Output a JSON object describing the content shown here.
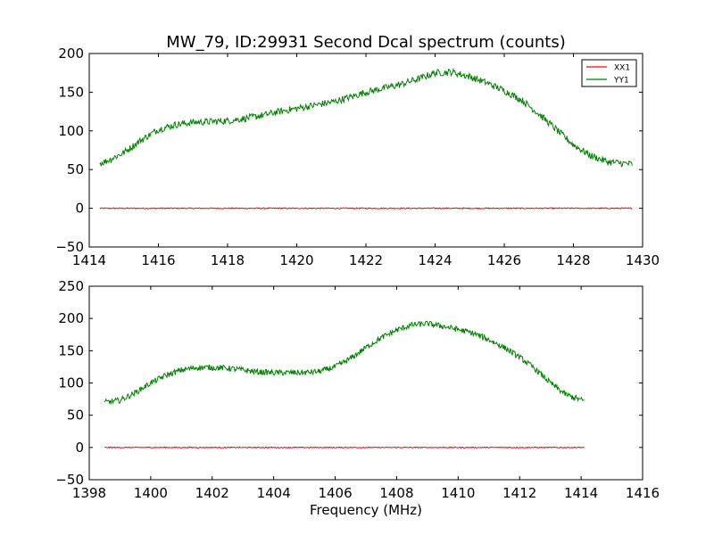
{
  "chart_data": [
    {
      "type": "line",
      "title": "MW_79, ID:29931 Second Dcal spectrum (counts)",
      "xlabel": "",
      "ylabel": "",
      "xlim": [
        1414,
        1430
      ],
      "ylim": [
        -50,
        200
      ],
      "xticks": [
        "1414",
        "1416",
        "1418",
        "1420",
        "1422",
        "1424",
        "1426",
        "1428",
        "1430"
      ],
      "yticks": [
        "−50",
        "0",
        "50",
        "100",
        "150",
        "200"
      ],
      "grid": false,
      "legend": {
        "position": "top-right",
        "entries": [
          "XX1",
          "YY1"
        ]
      },
      "series": [
        {
          "name": "XX1",
          "color": "#ff0000",
          "x": [
            1414.3,
            1429.7
          ],
          "y": [
            0,
            0
          ]
        },
        {
          "name": "YY1",
          "color": "#008000",
          "x": [
            1414.3,
            1414.5,
            1415,
            1415.5,
            1416,
            1416.5,
            1417,
            1417.5,
            1418,
            1418.5,
            1419,
            1419.5,
            1420,
            1420.5,
            1421,
            1421.5,
            1422,
            1422.5,
            1423,
            1423.5,
            1424,
            1424.5,
            1425,
            1425.5,
            1426,
            1426.5,
            1427,
            1427.5,
            1428,
            1428.5,
            1429,
            1429.7
          ],
          "y": [
            58,
            61,
            72,
            88,
            102,
            108,
            111,
            112,
            113,
            116,
            120,
            125,
            129,
            133,
            137,
            143,
            150,
            155,
            160,
            167,
            175,
            176,
            170,
            162,
            152,
            140,
            122,
            102,
            82,
            68,
            60,
            57
          ]
        }
      ]
    },
    {
      "type": "line",
      "title": "",
      "xlabel": "Frequency (MHz)",
      "ylabel": "",
      "xlim": [
        1398,
        1416
      ],
      "ylim": [
        -50,
        250
      ],
      "xticks": [
        "1398",
        "1400",
        "1402",
        "1404",
        "1406",
        "1408",
        "1410",
        "1412",
        "1414",
        "1416"
      ],
      "yticks": [
        "−50",
        "0",
        "50",
        "100",
        "150",
        "200",
        "250"
      ],
      "grid": false,
      "series": [
        {
          "name": "XX1",
          "color": "#ff0000",
          "x": [
            1398.5,
            1414.1
          ],
          "y": [
            0,
            0
          ]
        },
        {
          "name": "YY1",
          "color": "#008000",
          "x": [
            1398.5,
            1399,
            1399.5,
            1400,
            1400.5,
            1401,
            1401.5,
            1402,
            1402.5,
            1403,
            1403.5,
            1404,
            1404.5,
            1405,
            1405.5,
            1406,
            1406.5,
            1407,
            1407.5,
            1408,
            1408.5,
            1409,
            1409.5,
            1410,
            1410.5,
            1411,
            1411.5,
            1412,
            1412.5,
            1413,
            1413.5,
            1414.1
          ],
          "y": [
            70,
            73,
            85,
            100,
            112,
            120,
            124,
            124,
            123,
            120,
            117,
            116,
            116,
            116,
            118,
            125,
            138,
            155,
            170,
            182,
            190,
            192,
            188,
            183,
            177,
            167,
            155,
            140,
            122,
            100,
            82,
            72
          ]
        }
      ]
    }
  ]
}
